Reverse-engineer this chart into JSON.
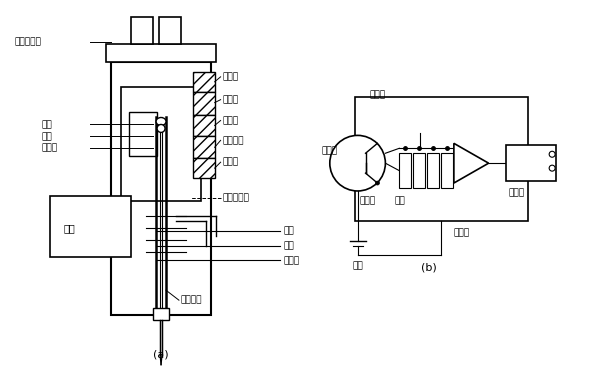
{
  "bg_color": "#ffffff",
  "label_a": "(a)",
  "label_b": "(b)",
  "txt_jiance": "检测器筒体",
  "txt_huoyan": "火焰",
  "txt_penzui": "喷嘴",
  "txt_jueyuanzi_l": "绝缘子",
  "txt_jueyuanzi_rt": "绝缘子",
  "txt_shouji": "收集极",
  "txt_jihua": "极化板",
  "txt_jidian": "及点火器",
  "txt_jueyuanzi_rb": "绝缘子",
  "txt_kongqi_kqs": "空气扩散器",
  "txt_kongqi": "空气",
  "txt_qingqi": "氢气",
  "txt_weichui": "尾吹气",
  "txt_maoxiguan": "毛细管柱",
  "txt_dizuo": "底座",
  "txt_lizizhishi": "离子室",
  "txt_shouji_b": "收集极",
  "txt_gezu": "隔阻",
  "txt_fashe": "发射极",
  "txt_dianyuan": "电源",
  "txt_fangda": "放大器",
  "txt_jilu": "记录器"
}
